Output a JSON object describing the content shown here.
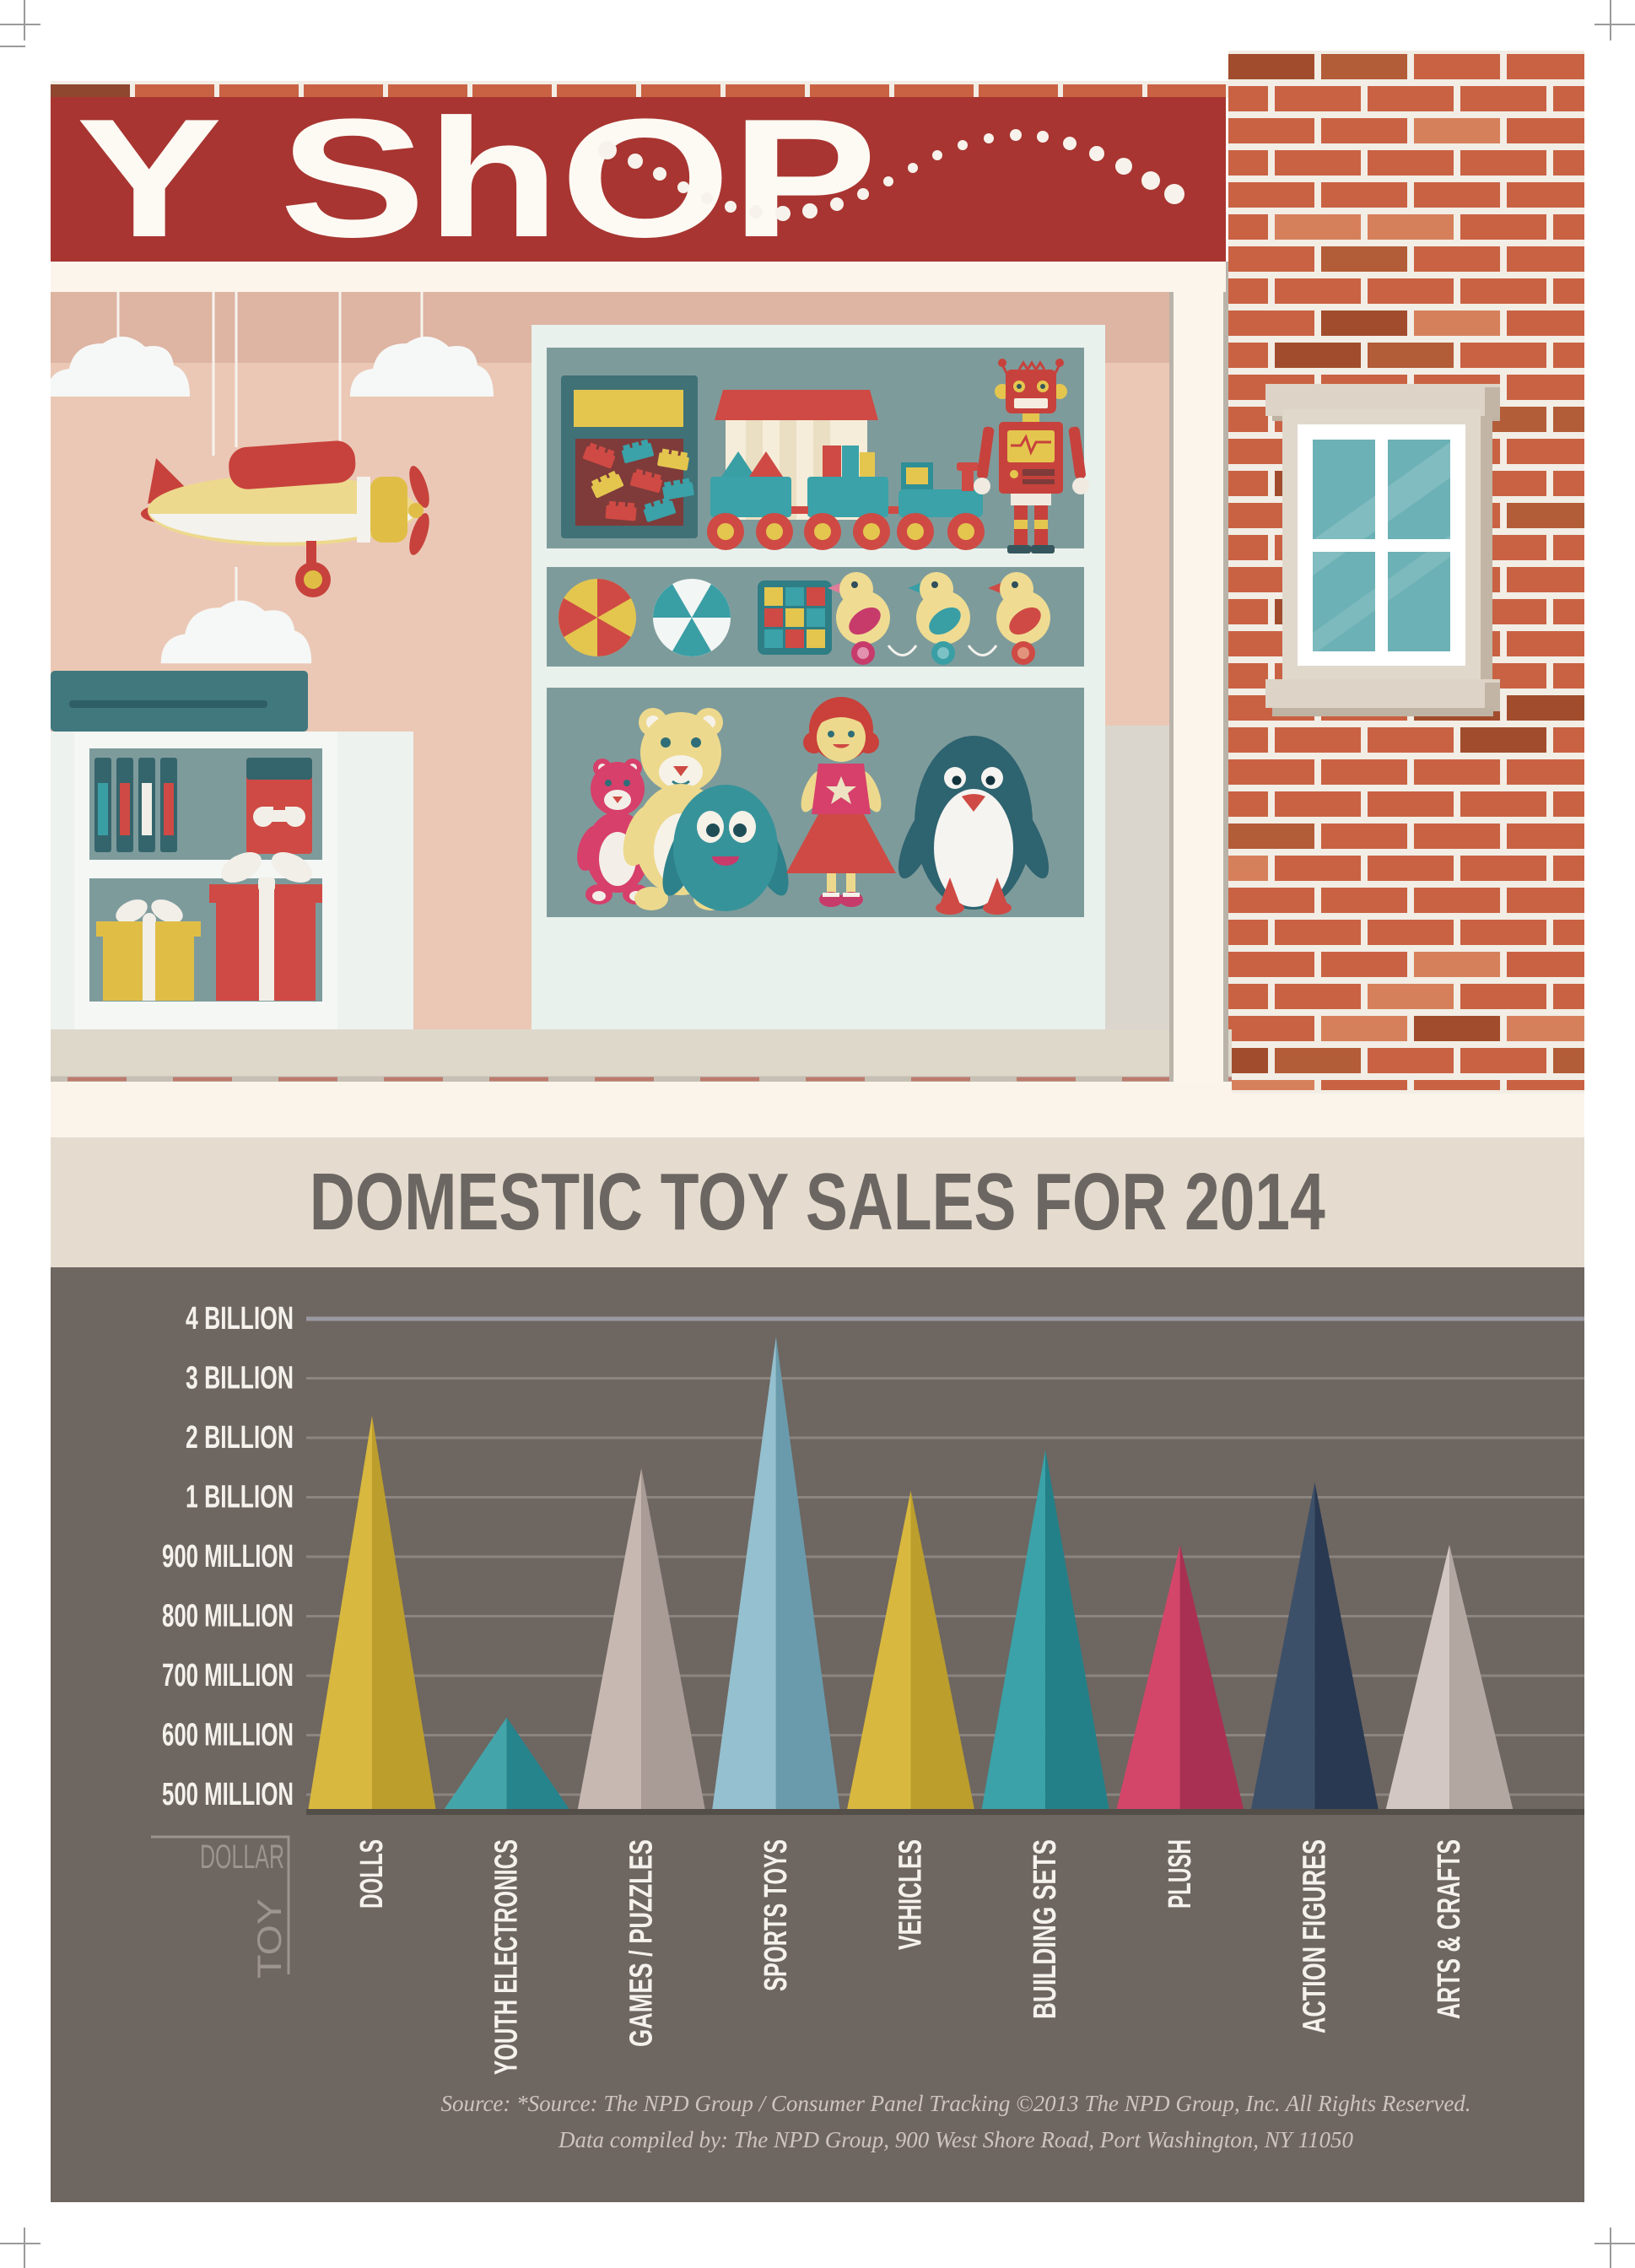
{
  "sign": {
    "text": "Y ShOP"
  },
  "title": "DOMESTIC TOY SALES FOR 2014",
  "chart_data": {
    "type": "bar",
    "style": "triangle-peaks",
    "title": "DOMESTIC TOY SALES FOR 2014",
    "categories": [
      "DOLLS",
      "YOUTH ELECTRONICS",
      "GAMES / PUZZLES",
      "SPORTS TOYS",
      "VEHICLES",
      "BUILDING SETS",
      "PLUSH",
      "ACTION FIGURES",
      "ARTS & CRAFTS"
    ],
    "values_usd_millions": [
      2370,
      630,
      1490,
      3700,
      1110,
      1800,
      920,
      1250,
      920
    ],
    "y_ticks": [
      "4 BILLION",
      "3 BILLION",
      "2 BILLION",
      "1 BILLION",
      "900 MILLION",
      "800 MILLION",
      "700 MILLION",
      "600 MILLION",
      "500 MILLION"
    ],
    "y_tick_values_millions": [
      4000,
      3000,
      2000,
      1000,
      900,
      800,
      700,
      600,
      500
    ],
    "axis_scale": "non-linear, equal spacing per labeled tick",
    "ylabel": "DOLLAR",
    "xlabel": "TOY",
    "grid": true,
    "background": "#6E6661",
    "label_color": "#F5F2EE",
    "axis_corner_color": "#9C958E",
    "baseline_color": "#544E48",
    "series_colors": [
      {
        "left": "#D8B83E",
        "right": "#BC9E2C"
      },
      {
        "left": "#43A5AA",
        "right": "#26848D"
      },
      {
        "left": "#C7B8B2",
        "right": "#A99B96"
      },
      {
        "left": "#94C0CF",
        "right": "#699BAC"
      },
      {
        "left": "#D8B83E",
        "right": "#BC9E2C"
      },
      {
        "left": "#3AA2A8",
        "right": "#238089"
      },
      {
        "left": "#D4456A",
        "right": "#A93053"
      },
      {
        "left": "#3D5069",
        "right": "#293952"
      },
      {
        "left": "#D2C7C2",
        "right": "#B3A7A1"
      }
    ]
  },
  "source": {
    "line1": "Source: *Source: The NPD Group / Consumer Panel Tracking ©2013 The NPD Group, Inc. All Rights Reserved.",
    "line2": "Data compiled by: The NPD Group, 900 West Shore Road, Port Washington, NY 11050"
  },
  "colors": {
    "sign_red": "#A83531",
    "brick": "#C96243",
    "cream": "#FAF4EA",
    "title_band": "#E5DCCF",
    "chart_bg": "#6E6661",
    "wall_pink": "#EBC8B6",
    "display_teal": "#7E9B9B"
  }
}
